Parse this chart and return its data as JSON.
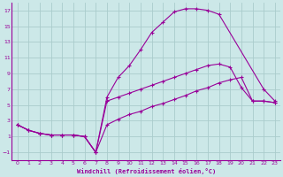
{
  "title": "",
  "xlabel": "Windchill (Refroidissement éolien,°C)",
  "bg_color": "#cce8e8",
  "line_color": "#990099",
  "grid_color": "#aacccc",
  "xlim": [
    -0.5,
    23.5
  ],
  "ylim": [
    -2,
    18
  ],
  "xticks": [
    0,
    1,
    2,
    3,
    4,
    5,
    6,
    7,
    8,
    9,
    10,
    11,
    12,
    13,
    14,
    15,
    16,
    17,
    18,
    19,
    20,
    21,
    22,
    23
  ],
  "yticks": [
    -1,
    1,
    3,
    5,
    7,
    9,
    11,
    13,
    15,
    17
  ],
  "line1_x": [
    0,
    1,
    2,
    3,
    4,
    5,
    6,
    7,
    8,
    9,
    10,
    11,
    12,
    13,
    14,
    15,
    16,
    17,
    18,
    22,
    23
  ],
  "line1_y": [
    2.5,
    1.8,
    1.4,
    1.2,
    1.2,
    1.2,
    1.0,
    -1.0,
    6.0,
    8.5,
    10.0,
    12.0,
    14.2,
    15.5,
    16.8,
    17.2,
    17.2,
    17.0,
    16.5,
    7.0,
    5.5
  ],
  "line2_x": [
    0,
    1,
    2,
    3,
    4,
    5,
    6,
    7,
    8,
    9,
    10,
    11,
    12,
    13,
    14,
    15,
    16,
    17,
    18,
    19,
    20,
    21,
    22,
    23
  ],
  "line2_y": [
    2.5,
    1.8,
    1.4,
    1.2,
    1.2,
    1.2,
    1.0,
    -1.0,
    5.5,
    6.0,
    6.5,
    7.0,
    7.5,
    8.0,
    8.5,
    9.0,
    9.5,
    10.0,
    10.2,
    9.8,
    7.2,
    5.5,
    5.5,
    5.3
  ],
  "line3_x": [
    0,
    1,
    2,
    3,
    4,
    5,
    6,
    7,
    8,
    9,
    10,
    11,
    12,
    13,
    14,
    15,
    16,
    17,
    18,
    19,
    20,
    21,
    22,
    23
  ],
  "line3_y": [
    2.5,
    1.8,
    1.4,
    1.2,
    1.2,
    1.2,
    1.0,
    -1.0,
    2.5,
    3.2,
    3.8,
    4.2,
    4.8,
    5.2,
    5.7,
    6.2,
    6.8,
    7.2,
    7.8,
    8.2,
    8.5,
    5.5,
    5.5,
    5.3
  ]
}
